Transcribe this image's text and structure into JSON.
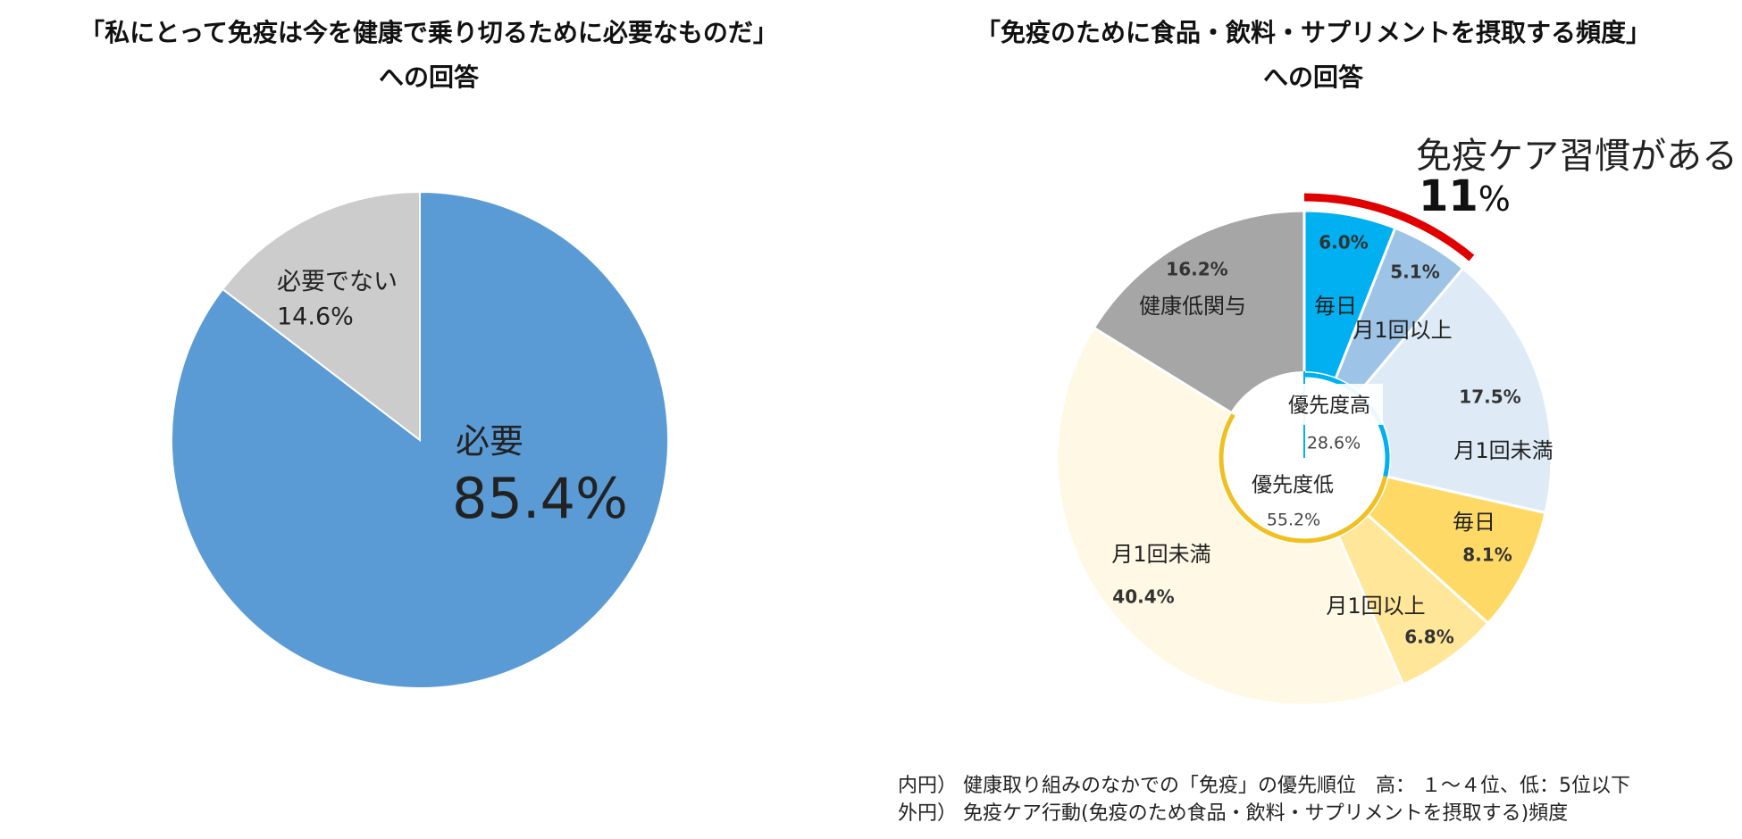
{
  "titles": {
    "left": [
      "「私にとって免疫は今を健康で乗り切るために必要なものだ」",
      "への回答"
    ],
    "right": [
      "「免疫のために食品・飲料・サプリメントを摂取する頻度」",
      "への回答"
    ]
  },
  "annotation": {
    "label": "免疫ケア習慣がある",
    "value": "11",
    "unit": "%"
  },
  "notes": [
    "内円） 健康取り組みのなかでの「免疫」の優先順位　高： １～４位、低：5位以下",
    "外円） 免疫ケア行動(免疫のため食品・飲料・サプリメントを摂取する)頻度"
  ],
  "chart_data": [
    {
      "type": "pie",
      "title": "「私にとって免疫は今を健康で乗り切るために必要なものだ」への回答",
      "slices": [
        {
          "label": "必要",
          "value": 85.4,
          "display": "85.4%",
          "color": "#5b9bd5"
        },
        {
          "label": "必要でない",
          "value": 14.6,
          "display": "14.6%",
          "color": "#cccccc"
        }
      ]
    },
    {
      "type": "pie",
      "title": "「免疫のために食品・飲料・サプリメントを摂取する頻度」への回答",
      "outer": [
        {
          "label": "毎日",
          "group": "優先度高",
          "value": 6.0,
          "display": "6.0%",
          "color": "#00b0f0"
        },
        {
          "label": "月1回以上",
          "group": "優先度高",
          "value": 5.1,
          "display": "5.1%",
          "color": "#9dc3e6"
        },
        {
          "label": "月1回未満",
          "group": "優先度高",
          "value": 17.5,
          "display": "17.5%",
          "color": "#deebf7"
        },
        {
          "label": "毎日",
          "group": "優先度低",
          "value": 8.1,
          "display": "8.1%",
          "color": "#ffd966"
        },
        {
          "label": "月1回以上",
          "group": "優先度低",
          "value": 6.8,
          "display": "6.8%",
          "color": "#ffe699"
        },
        {
          "label": "月1回未満",
          "group": "優先度低",
          "value": 40.4,
          "display": "40.4%",
          "color": "#fff8e5"
        },
        {
          "label": "健康低関与",
          "group": "",
          "value": 16.2,
          "display": "16.2%",
          "color": "#a6a6a6"
        }
      ],
      "inner": [
        {
          "label": "優先度高",
          "value": 28.6,
          "display": "28.6%",
          "color": "#00b0f0"
        },
        {
          "label": "優先度低",
          "value": 55.2,
          "display": "55.2%",
          "color": "#f0c020"
        }
      ],
      "highlight": {
        "label": "免疫ケア習慣がある",
        "value": 11,
        "color": "#e00000"
      }
    }
  ]
}
